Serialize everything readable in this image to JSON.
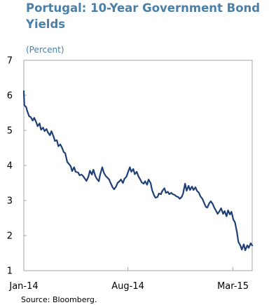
{
  "chart_data": {
    "type": "line",
    "title": "Portugal: 10-Year Government Bond Yields",
    "subtitle": "(Percent)",
    "source": "Source: Bloomberg.",
    "xlabel": "",
    "ylabel": "",
    "xlim": [
      "2014-01-02",
      "2015-04-10"
    ],
    "ylim": [
      1,
      7
    ],
    "yticks": [
      1,
      2,
      3,
      4,
      5,
      6,
      7
    ],
    "xtick_labels": [
      {
        "label": "Jan-14",
        "date": "2014-01-02"
      },
      {
        "label": "Aug-14",
        "date": "2014-08-01"
      },
      {
        "label": "Mar-15",
        "date": "2015-03-02"
      }
    ],
    "grid": false,
    "legend": "none",
    "line_color": "#1f3f77",
    "series": [
      {
        "values": [
          [
            "2014-01-02",
            6.12
          ],
          [
            "2014-01-03",
            5.72
          ],
          [
            "2014-01-07",
            5.66
          ],
          [
            "2014-01-09",
            5.55
          ],
          [
            "2014-01-13",
            5.4
          ],
          [
            "2014-01-16",
            5.38
          ],
          [
            "2014-01-20",
            5.28
          ],
          [
            "2014-01-23",
            5.36
          ],
          [
            "2014-01-27",
            5.24
          ],
          [
            "2014-01-30",
            5.12
          ],
          [
            "2014-02-03",
            5.2
          ],
          [
            "2014-02-06",
            5.02
          ],
          [
            "2014-02-10",
            5.08
          ],
          [
            "2014-02-13",
            4.98
          ],
          [
            "2014-02-17",
            5.04
          ],
          [
            "2014-02-20",
            4.94
          ],
          [
            "2014-02-24",
            4.86
          ],
          [
            "2014-02-27",
            4.98
          ],
          [
            "2014-03-03",
            4.84
          ],
          [
            "2014-03-06",
            4.7
          ],
          [
            "2014-03-10",
            4.72
          ],
          [
            "2014-03-13",
            4.55
          ],
          [
            "2014-03-17",
            4.6
          ],
          [
            "2014-03-20",
            4.52
          ],
          [
            "2014-03-24",
            4.38
          ],
          [
            "2014-03-27",
            4.35
          ],
          [
            "2014-03-31",
            4.1
          ],
          [
            "2014-04-03",
            4.05
          ],
          [
            "2014-04-07",
            3.98
          ],
          [
            "2014-04-10",
            3.84
          ],
          [
            "2014-04-14",
            3.95
          ],
          [
            "2014-04-17",
            3.82
          ],
          [
            "2014-04-22",
            3.8
          ],
          [
            "2014-04-25",
            3.72
          ],
          [
            "2014-04-29",
            3.74
          ],
          [
            "2014-05-02",
            3.7
          ],
          [
            "2014-05-06",
            3.62
          ],
          [
            "2014-05-09",
            3.56
          ],
          [
            "2014-05-13",
            3.68
          ],
          [
            "2014-05-16",
            3.85
          ],
          [
            "2014-05-20",
            3.74
          ],
          [
            "2014-05-23",
            3.88
          ],
          [
            "2014-05-27",
            3.7
          ],
          [
            "2014-05-30",
            3.62
          ],
          [
            "2014-06-03",
            3.55
          ],
          [
            "2014-06-06",
            3.75
          ],
          [
            "2014-06-10",
            3.95
          ],
          [
            "2014-06-13",
            3.8
          ],
          [
            "2014-06-17",
            3.7
          ],
          [
            "2014-06-20",
            3.66
          ],
          [
            "2014-06-24",
            3.6
          ],
          [
            "2014-06-27",
            3.5
          ],
          [
            "2014-07-01",
            3.38
          ],
          [
            "2014-07-04",
            3.32
          ],
          [
            "2014-07-08",
            3.4
          ],
          [
            "2014-07-11",
            3.5
          ],
          [
            "2014-07-15",
            3.55
          ],
          [
            "2014-07-18",
            3.6
          ],
          [
            "2014-07-22",
            3.5
          ],
          [
            "2014-07-25",
            3.62
          ],
          [
            "2014-07-29",
            3.68
          ],
          [
            "2014-08-01",
            3.8
          ],
          [
            "2014-08-05",
            3.95
          ],
          [
            "2014-08-08",
            3.82
          ],
          [
            "2014-08-12",
            3.9
          ],
          [
            "2014-08-15",
            3.75
          ],
          [
            "2014-08-19",
            3.82
          ],
          [
            "2014-08-22",
            3.7
          ],
          [
            "2014-08-26",
            3.6
          ],
          [
            "2014-08-29",
            3.52
          ],
          [
            "2014-09-02",
            3.48
          ],
          [
            "2014-09-05",
            3.55
          ],
          [
            "2014-09-09",
            3.45
          ],
          [
            "2014-09-12",
            3.6
          ],
          [
            "2014-09-16",
            3.5
          ],
          [
            "2014-09-19",
            3.3
          ],
          [
            "2014-09-23",
            3.15
          ],
          [
            "2014-09-26",
            3.08
          ],
          [
            "2014-09-30",
            3.1
          ],
          [
            "2014-10-03",
            3.2
          ],
          [
            "2014-10-07",
            3.18
          ],
          [
            "2014-10-10",
            3.28
          ],
          [
            "2014-10-14",
            3.35
          ],
          [
            "2014-10-17",
            3.22
          ],
          [
            "2014-10-21",
            3.25
          ],
          [
            "2014-10-24",
            3.18
          ],
          [
            "2014-10-28",
            3.22
          ],
          [
            "2014-10-31",
            3.18
          ],
          [
            "2014-11-04",
            3.16
          ],
          [
            "2014-11-07",
            3.12
          ],
          [
            "2014-11-11",
            3.1
          ],
          [
            "2014-11-14",
            3.05
          ],
          [
            "2014-11-18",
            3.1
          ],
          [
            "2014-11-21",
            3.2
          ],
          [
            "2014-11-25",
            3.48
          ],
          [
            "2014-11-28",
            3.28
          ],
          [
            "2014-12-02",
            3.42
          ],
          [
            "2014-12-05",
            3.3
          ],
          [
            "2014-12-09",
            3.4
          ],
          [
            "2014-12-12",
            3.3
          ],
          [
            "2014-12-16",
            3.38
          ],
          [
            "2014-12-19",
            3.28
          ],
          [
            "2014-12-23",
            3.22
          ],
          [
            "2014-12-26",
            3.12
          ],
          [
            "2014-12-30",
            3.05
          ],
          [
            "2015-01-02",
            2.95
          ],
          [
            "2015-01-06",
            2.82
          ],
          [
            "2015-01-09",
            2.8
          ],
          [
            "2015-01-13",
            2.92
          ],
          [
            "2015-01-16",
            2.98
          ],
          [
            "2015-01-20",
            2.9
          ],
          [
            "2015-01-23",
            2.8
          ],
          [
            "2015-01-27",
            2.7
          ],
          [
            "2015-01-30",
            2.62
          ],
          [
            "2015-02-03",
            2.7
          ],
          [
            "2015-02-06",
            2.78
          ],
          [
            "2015-02-10",
            2.62
          ],
          [
            "2015-02-13",
            2.7
          ],
          [
            "2015-02-17",
            2.55
          ],
          [
            "2015-02-20",
            2.72
          ],
          [
            "2015-02-24",
            2.6
          ],
          [
            "2015-02-27",
            2.68
          ],
          [
            "2015-03-03",
            2.45
          ],
          [
            "2015-03-06",
            2.38
          ],
          [
            "2015-03-10",
            2.1
          ],
          [
            "2015-03-13",
            1.82
          ],
          [
            "2015-03-17",
            1.72
          ],
          [
            "2015-03-20",
            1.6
          ],
          [
            "2015-03-24",
            1.75
          ],
          [
            "2015-03-27",
            1.58
          ],
          [
            "2015-03-31",
            1.72
          ],
          [
            "2015-04-03",
            1.65
          ],
          [
            "2015-04-07",
            1.78
          ],
          [
            "2015-04-10",
            1.72
          ]
        ]
      }
    ]
  }
}
